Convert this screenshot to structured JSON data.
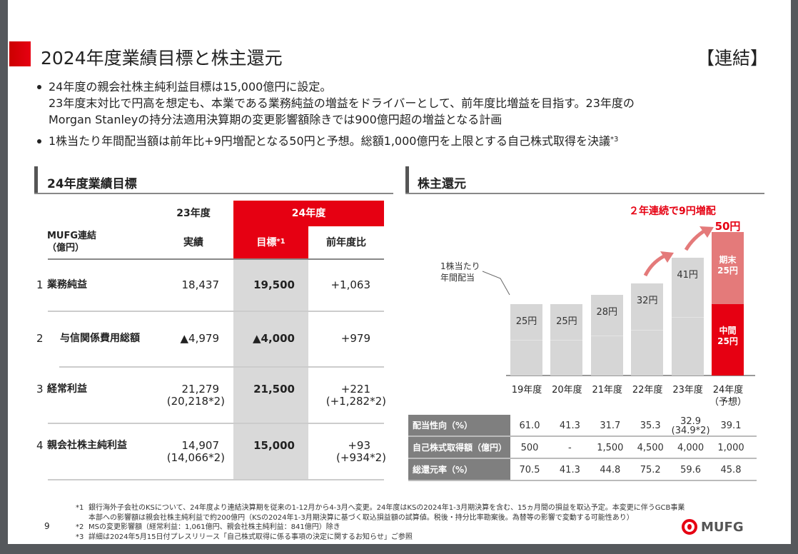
{
  "header": {
    "title": "2024年度業績目標と株主還元",
    "scope": "【連結】"
  },
  "bullets": [
    {
      "lines": [
        "24年度の親会社株主純利益目標は15,000億円に設定。",
        "23年度末対比で円高を想定も、本業である業務純益の増益をドライバーとして、前年度比増益を目指す。23年度の",
        "Morgan Stanleyの持分法適用決算期の変更影響額除きでは900億円超の増益となる計画"
      ]
    },
    {
      "lines": [
        "1株当たり年間配当額は前年比+9円増配となる50円と予想。総額1,000億円を上限とする自己株式取得を決議"
      ],
      "note": "*3"
    }
  ],
  "targets": {
    "section_title": "24年度業績目標",
    "unit_label": [
      "MUFG連結",
      "（億円）"
    ],
    "col_fy23": "23年度",
    "col_fy24": "24年度",
    "col_actual": "実績",
    "col_target": "目標",
    "col_target_note": "*1",
    "col_yoy": "前年度比",
    "rows": [
      {
        "no": "1",
        "label": "業務純益",
        "actual": "18,437",
        "actual_sub": "",
        "target": "19,500",
        "yoy": "+1,063",
        "yoy_sub": ""
      },
      {
        "no": "2",
        "label": "与信関係費用総額",
        "actual": "▲4,979",
        "actual_sub": "",
        "target": "▲4,000",
        "yoy": "+979",
        "yoy_sub": ""
      },
      {
        "no": "3",
        "label": "経常利益",
        "actual": "21,279",
        "actual_sub": "(20,218*2)",
        "target": "21,500",
        "yoy": "+221",
        "yoy_sub": "(+1,282*2)"
      },
      {
        "no": "4",
        "label": "親会社株主純利益",
        "actual": "14,907",
        "actual_sub": "(14,066*2)",
        "target": "15,000",
        "yoy": "+93",
        "yoy_sub": "(+934*2)"
      }
    ]
  },
  "returns": {
    "section_title": "株主還元",
    "headline": "２年連続で9円増配",
    "annotation": [
      "1株当たり",
      "年間配当"
    ],
    "total_label": "50円",
    "final_label": "期末",
    "final_value": "25円",
    "interim_label": "中間",
    "interim_value": "25円",
    "table": [
      {
        "label": "配当性向（%）",
        "values": [
          "61.0",
          "41.3",
          "31.7",
          "35.3",
          "32.9",
          "39.1"
        ],
        "sub": [
          "",
          "",
          "",
          "",
          "(34.9*2)",
          ""
        ]
      },
      {
        "label": "自己株式取得額（億円）",
        "values": [
          "500",
          "-",
          "1,500",
          "4,500",
          "4,000",
          "1,000"
        ]
      },
      {
        "label": "総還元率（%）",
        "values": [
          "70.5",
          "41.3",
          "44.8",
          "75.2",
          "59.6",
          "45.8"
        ]
      }
    ]
  },
  "chart_data": {
    "type": "bar",
    "categories": [
      "19年度",
      "20年度",
      "21年度",
      "22年度",
      "23年度",
      "24年度"
    ],
    "category_sub": [
      "",
      "",
      "",
      "",
      "",
      "（予想）"
    ],
    "values": [
      25,
      25,
      28,
      32,
      41,
      50
    ],
    "value_labels": [
      "25円",
      "25円",
      "28円",
      "32円",
      "41円",
      "50円"
    ],
    "stacked_last": {
      "interim": 25,
      "final": 25
    },
    "colors": {
      "past": "#d6d6d6",
      "interim": "#e60012",
      "final": "#e47a7a",
      "accent": "#e60012"
    }
  },
  "footnotes": [
    {
      "mark": "*1",
      "lines": [
        "銀行海外子会社のKSについて、24年度より連結決算期を従来の1-12月から4-3月へ変更。24年度はKSの2024年1-3月期決算を含む、15ヵ月間の損益を取込予定。本変更に伴うGCB事業",
        "本部への影響額は親会社株主純利益で約200億円（KSの2024年1-3月期決算に基づく取込損益額の試算値。税後・持分比率勘案後。為替等の影響で変動する可能性あり）"
      ]
    },
    {
      "mark": "*2",
      "lines": [
        "MSの変更影響額（経常利益：1,061億円、親会社株主純利益：841億円）除き"
      ]
    },
    {
      "mark": "*3",
      "lines": [
        "詳細は2024年5月15日付プレスリリース「自己株式取得に係る事項の決定に関するお知らせ」ご参照"
      ]
    }
  ],
  "page_number": "9",
  "logo": "MUFG"
}
